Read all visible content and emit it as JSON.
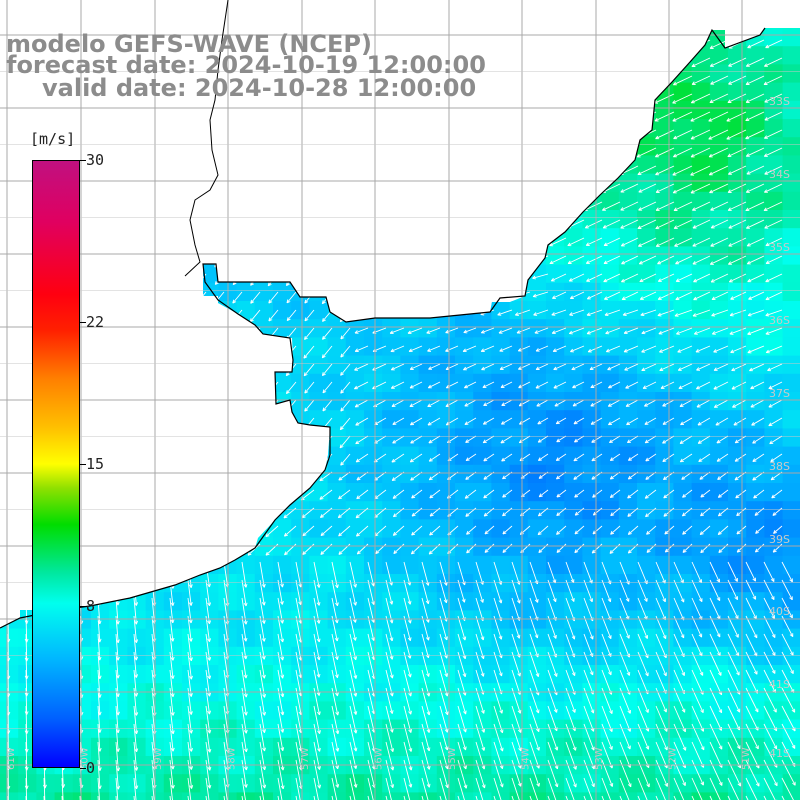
{
  "title": {
    "line1": "modelo GEFS-WAVE (NCEP)",
    "line2": "forecast date: 2024-10-19 12:00:00",
    "line3": "valid date: 2024-10-28 12:00:00"
  },
  "colorbar": {
    "unit": "[m/s]",
    "ticks": [
      "30",
      "22",
      "15",
      "8",
      "0"
    ],
    "tick_values": [
      30,
      22,
      15,
      8,
      0
    ],
    "range": [
      0,
      30
    ]
  },
  "lat_labels": [
    "33S",
    "34S",
    "35S",
    "36S",
    "37S",
    "38S",
    "39S",
    "40S",
    "41S"
  ],
  "lon_labels": [
    "61W",
    "60W",
    "59W",
    "58W",
    "57W",
    "56W",
    "55W",
    "54W",
    "53W",
    "52W",
    "51W"
  ],
  "colors": {
    "land": "#ffffff",
    "grid": "#a8a8a8",
    "coast": "#000000",
    "title": "#8c8c8c",
    "arrow": "#ffffff"
  }
}
